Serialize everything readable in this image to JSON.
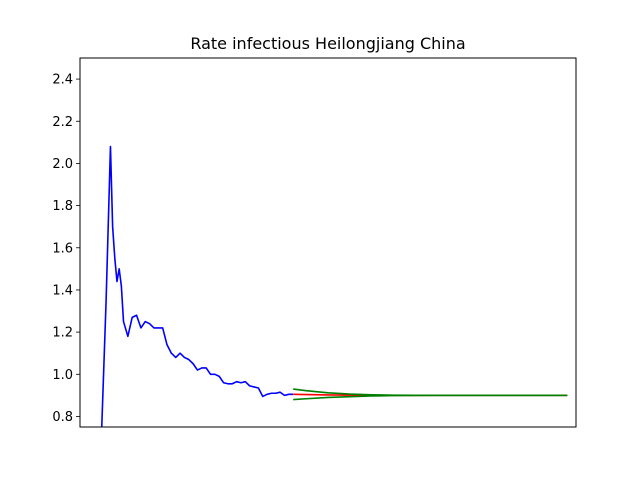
{
  "chart_data": {
    "type": "line",
    "title": "Rate infectious Heilongjiang China",
    "xlabel": "",
    "ylabel": "",
    "xlim": [
      -2,
      112
    ],
    "ylim": [
      0.75,
      2.5
    ],
    "x_ticks_shown": false,
    "grid": false,
    "yticks": [
      "0.8",
      "1.0",
      "1.2",
      "1.4",
      "1.6",
      "1.8",
      "2.0",
      "2.2",
      "2.4"
    ],
    "series": [
      {
        "color": "#0000ff",
        "x": [
          3,
          4,
          5,
          5.5,
          6,
          6.5,
          7,
          7.5,
          8,
          9,
          10,
          11,
          12,
          13,
          14,
          15,
          16,
          17,
          18,
          19,
          20,
          21,
          22,
          23,
          24,
          25,
          26,
          27,
          28,
          29,
          30,
          31,
          32,
          33,
          34,
          35,
          36,
          37,
          38,
          39,
          40,
          41,
          42,
          43,
          44,
          45,
          46,
          47
        ],
        "y": [
          0.75,
          1.35,
          2.08,
          1.7,
          1.55,
          1.44,
          1.5,
          1.42,
          1.25,
          1.18,
          1.27,
          1.28,
          1.22,
          1.25,
          1.24,
          1.22,
          1.22,
          1.22,
          1.14,
          1.1,
          1.08,
          1.1,
          1.08,
          1.07,
          1.05,
          1.02,
          1.03,
          1.03,
          1.0,
          1.0,
          0.99,
          0.96,
          0.955,
          0.955,
          0.965,
          0.96,
          0.965,
          0.945,
          0.94,
          0.935,
          0.895,
          0.905,
          0.91,
          0.91,
          0.915,
          0.9,
          0.905,
          0.905
        ]
      },
      {
        "color": "#ff0000",
        "x": [
          47,
          55,
          65,
          75,
          85,
          95,
          105,
          110
        ],
        "y": [
          0.905,
          0.902,
          0.9,
          0.9,
          0.9,
          0.9,
          0.9,
          0.9
        ]
      },
      {
        "color": "#008000",
        "x": [
          47,
          50,
          55,
          60,
          65,
          70,
          80,
          90,
          100,
          110
        ],
        "y": [
          0.93,
          0.922,
          0.912,
          0.906,
          0.903,
          0.901,
          0.9,
          0.9,
          0.9,
          0.9
        ]
      },
      {
        "color": "#008000",
        "x": [
          47,
          50,
          55,
          60,
          65,
          70,
          80,
          90,
          100,
          110
        ],
        "y": [
          0.88,
          0.884,
          0.89,
          0.894,
          0.897,
          0.899,
          0.9,
          0.9,
          0.9,
          0.9
        ]
      }
    ]
  }
}
